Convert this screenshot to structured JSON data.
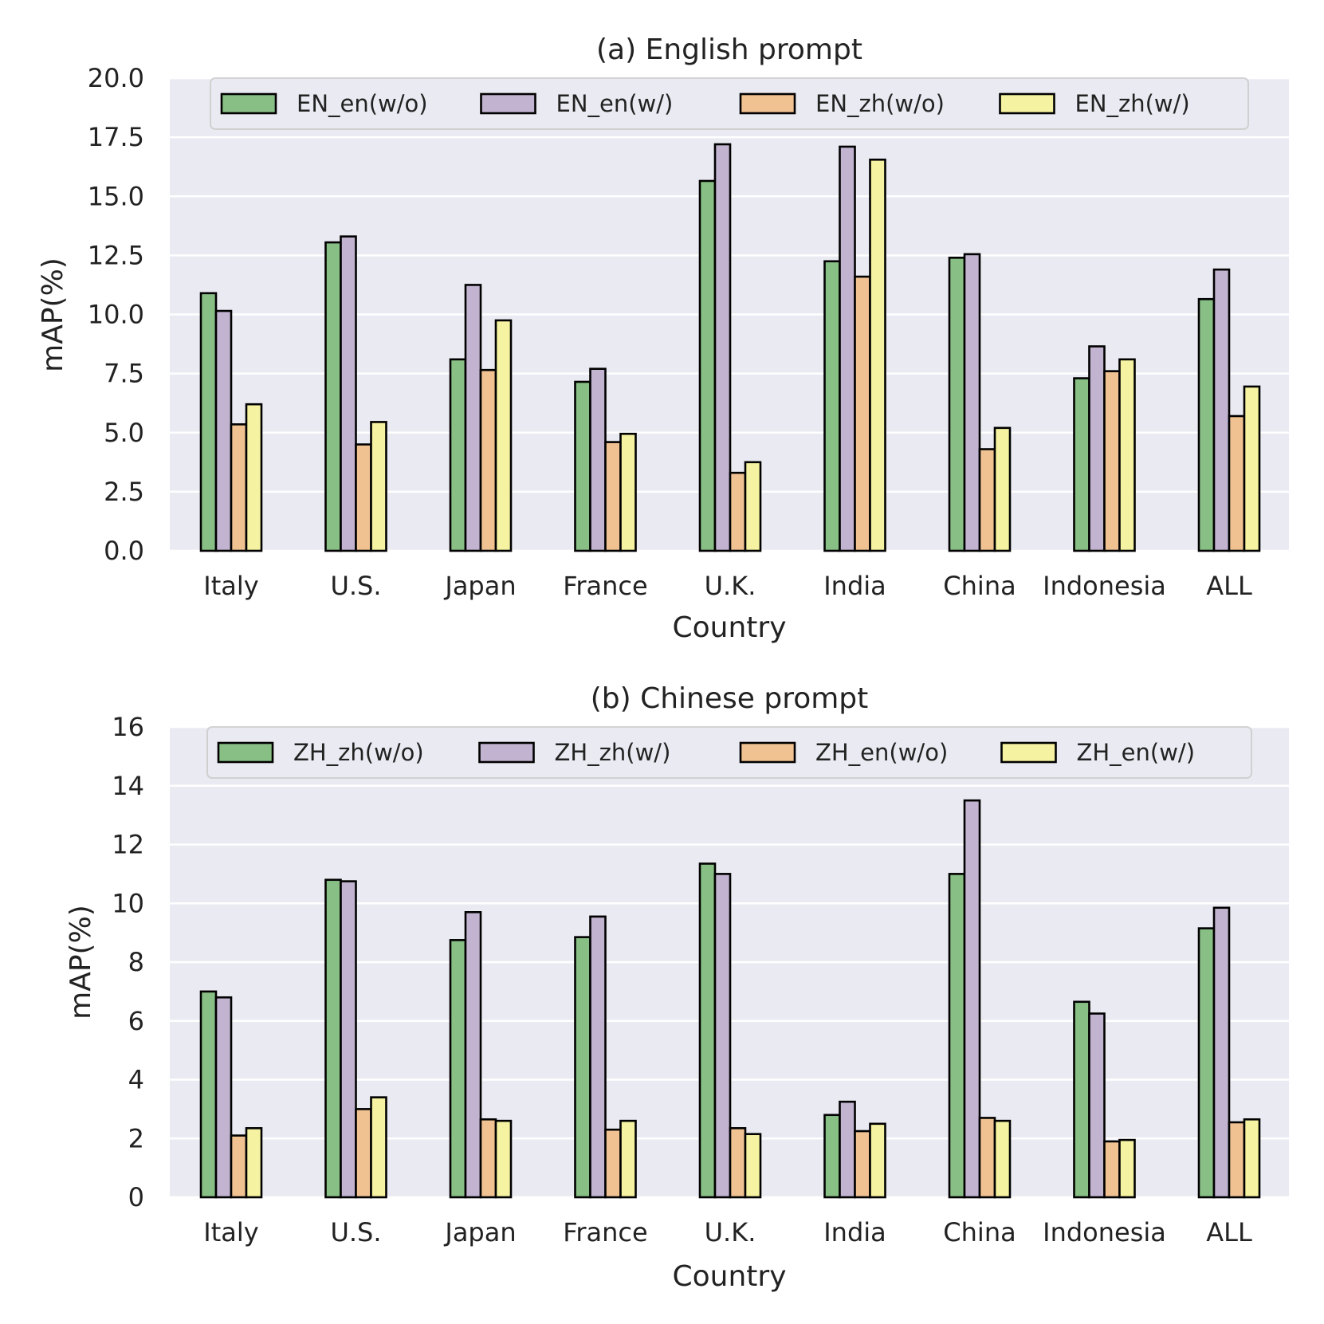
{
  "chart_data": [
    {
      "type": "bar",
      "title": "(a) English prompt",
      "xlabel": "Country",
      "ylabel": "mAP(%)",
      "ylim": [
        0,
        20
      ],
      "yticks": [
        "0.0",
        "2.5",
        "5.0",
        "7.5",
        "10.0",
        "12.5",
        "15.0",
        "17.5",
        "20.0"
      ],
      "yticks_values": [
        0,
        2.5,
        5,
        7.5,
        10,
        12.5,
        15,
        17.5,
        20
      ],
      "grid": true,
      "legend": "top, 4 columns",
      "categories": [
        "Italy",
        "U.S.",
        "Japan",
        "France",
        "U.K.",
        "India",
        "China",
        "Indonesia",
        "ALL"
      ],
      "series": [
        {
          "name": "EN_en(w/o)",
          "color": "#88bf85",
          "values": [
            10.9,
            13.05,
            8.1,
            7.15,
            15.65,
            12.25,
            12.4,
            7.3,
            10.65
          ]
        },
        {
          "name": "EN_en(w/)",
          "color": "#c2b4d1",
          "values": [
            10.15,
            13.3,
            11.25,
            7.7,
            17.2,
            17.1,
            12.55,
            8.65,
            11.9
          ]
        },
        {
          "name": "EN_zh(w/o)",
          "color": "#f0c292",
          "values": [
            5.35,
            4.5,
            7.65,
            4.6,
            3.3,
            11.6,
            4.3,
            7.6,
            5.7
          ]
        },
        {
          "name": "EN_zh(w/)",
          "color": "#f5f2a1",
          "values": [
            6.2,
            5.45,
            9.75,
            4.95,
            3.75,
            16.55,
            5.2,
            8.1,
            6.95
          ]
        }
      ]
    },
    {
      "type": "bar",
      "title": "(b) Chinese prompt",
      "xlabel": "Country",
      "ylabel": "mAP(%)",
      "ylim": [
        0,
        16
      ],
      "yticks": [
        "0",
        "2",
        "4",
        "6",
        "8",
        "10",
        "12",
        "14",
        "16"
      ],
      "yticks_values": [
        0,
        2,
        4,
        6,
        8,
        10,
        12,
        14,
        16
      ],
      "grid": true,
      "legend": "top, 4 columns",
      "categories": [
        "Italy",
        "U.S.",
        "Japan",
        "France",
        "U.K.",
        "India",
        "China",
        "Indonesia",
        "ALL"
      ],
      "series": [
        {
          "name": "ZH_zh(w/o)",
          "color": "#88bf85",
          "values": [
            7.0,
            10.8,
            8.75,
            8.85,
            11.35,
            2.8,
            11.0,
            6.65,
            9.15
          ]
        },
        {
          "name": "ZH_zh(w/)",
          "color": "#c2b4d1",
          "values": [
            6.8,
            10.75,
            9.7,
            9.55,
            11.0,
            3.25,
            13.5,
            6.25,
            9.85
          ]
        },
        {
          "name": "ZH_en(w/o)",
          "color": "#f0c292",
          "values": [
            2.1,
            3.0,
            2.65,
            2.3,
            2.35,
            2.25,
            2.7,
            1.9,
            2.55
          ]
        },
        {
          "name": "ZH_en(w/)",
          "color": "#f5f2a1",
          "values": [
            2.35,
            3.4,
            2.6,
            2.6,
            2.15,
            2.5,
            2.6,
            1.95,
            2.65
          ]
        }
      ]
    }
  ]
}
